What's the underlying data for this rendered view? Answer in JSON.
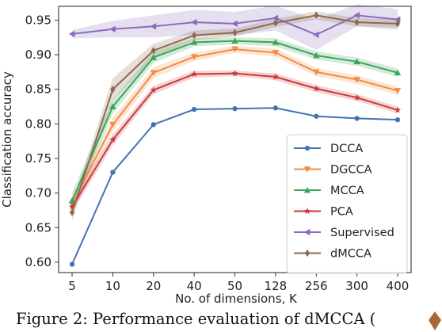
{
  "caption": "Figure 2: Performance evaluation of dMCCA (",
  "chart_data": {
    "type": "line",
    "xlabel": "No. of dimensions, K",
    "ylabel": "Classification accuracy",
    "categories": [
      "5",
      "10",
      "20",
      "40",
      "50",
      "128",
      "256",
      "300",
      "400"
    ],
    "ylim": [
      0.585,
      0.97
    ],
    "yticks": [
      0.6,
      0.65,
      0.7,
      0.75,
      0.8,
      0.85,
      0.9,
      0.95
    ],
    "grid": false,
    "legend_position": "lower-right",
    "series": [
      {
        "name": "DCCA",
        "color": "#4472b4",
        "marker": "circle",
        "values": [
          0.597,
          0.73,
          0.799,
          0.821,
          0.822,
          0.823,
          0.811,
          0.808,
          0.806
        ],
        "band": [
          0.0,
          0.0,
          0.0,
          0.0,
          0.0,
          0.0,
          0.0,
          0.0,
          0.0
        ]
      },
      {
        "name": "DGCCA",
        "color": "#f08c44",
        "marker": "triangle-down",
        "values": [
          0.684,
          0.799,
          0.874,
          0.897,
          0.908,
          0.903,
          0.875,
          0.864,
          0.848
        ],
        "band": [
          0.01,
          0.01,
          0.008,
          0.006,
          0.005,
          0.006,
          0.006,
          0.006,
          0.006
        ]
      },
      {
        "name": "MCCA",
        "color": "#3da65a",
        "marker": "triangle-up",
        "values": [
          0.689,
          0.825,
          0.896,
          0.918,
          0.92,
          0.918,
          0.899,
          0.89,
          0.874
        ],
        "band": [
          0.012,
          0.01,
          0.008,
          0.006,
          0.005,
          0.006,
          0.006,
          0.006,
          0.006
        ]
      },
      {
        "name": "PCA",
        "color": "#cc3a3c",
        "marker": "star",
        "values": [
          0.68,
          0.777,
          0.849,
          0.872,
          0.873,
          0.868,
          0.851,
          0.838,
          0.82
        ],
        "band": [
          0.008,
          0.008,
          0.006,
          0.005,
          0.004,
          0.005,
          0.005,
          0.005,
          0.005
        ]
      },
      {
        "name": "Supervised",
        "color": "#8a6cbc",
        "marker": "triangle-left",
        "values": [
          0.93,
          0.937,
          0.941,
          0.947,
          0.945,
          0.953,
          0.929,
          0.957,
          0.951
        ],
        "band": [
          0.006,
          0.012,
          0.016,
          0.018,
          0.017,
          0.018,
          0.022,
          0.016,
          0.015
        ]
      },
      {
        "name": "dMCCA",
        "color": "#8c6a4e",
        "marker": "diamond",
        "values": [
          0.672,
          0.85,
          0.906,
          0.928,
          0.932,
          0.946,
          0.957,
          0.947,
          0.945
        ],
        "band": [
          0.012,
          0.016,
          0.01,
          0.007,
          0.006,
          0.006,
          0.006,
          0.006,
          0.006
        ]
      }
    ]
  }
}
